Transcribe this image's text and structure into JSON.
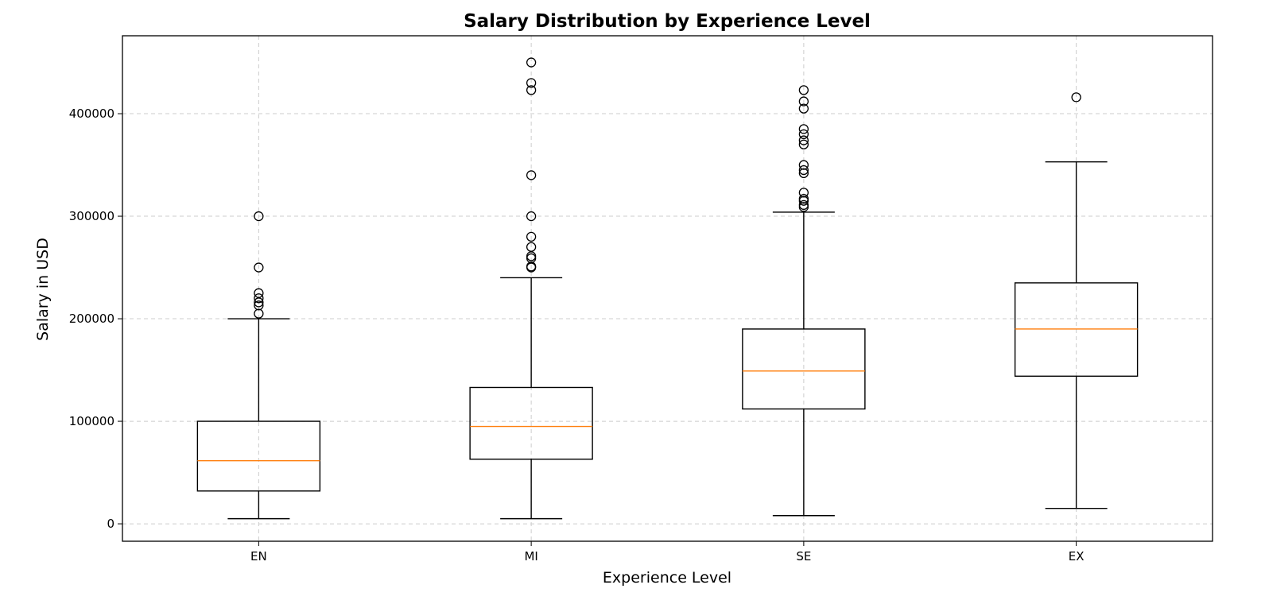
{
  "chart_data": {
    "type": "box",
    "title": "Salary Distribution by Experience Level",
    "xlabel": "Experience Level",
    "ylabel": "Salary in USD",
    "categories": [
      "EN",
      "MI",
      "SE",
      "EX"
    ],
    "ylim": [
      -17000,
      476000
    ],
    "yticks": [
      0,
      100000,
      200000,
      300000,
      400000
    ],
    "ytick_labels": [
      "0",
      "100000",
      "200000",
      "300000",
      "400000"
    ],
    "grid": true,
    "boxes": [
      {
        "category": "EN",
        "whisker_low": 5000,
        "q1": 32000,
        "median": 61500,
        "q3": 100000,
        "whisker_high": 200000,
        "outliers": [
          205000,
          213000,
          216000,
          220000,
          225000,
          250000,
          300000
        ]
      },
      {
        "category": "MI",
        "whisker_low": 5000,
        "q1": 63000,
        "median": 95000,
        "q3": 133000,
        "whisker_high": 240000,
        "outliers": [
          250000,
          251000,
          259000,
          261000,
          270000,
          280000,
          300000,
          340000,
          423000,
          430000,
          450000
        ]
      },
      {
        "category": "SE",
        "whisker_low": 8000,
        "q1": 112000,
        "median": 149000,
        "q3": 190000,
        "whisker_high": 304000,
        "outliers": [
          309000,
          311000,
          315000,
          317000,
          323000,
          342000,
          345000,
          350000,
          370000,
          374000,
          380000,
          385000,
          405000,
          412000,
          423000
        ]
      },
      {
        "category": "EX",
        "whisker_low": 15000,
        "q1": 144000,
        "median": 190000,
        "q3": 235000,
        "whisker_high": 353000,
        "outliers": [
          416000
        ]
      }
    ],
    "colors": {
      "box": "#000000",
      "median": "#ff7f0e",
      "grid": "#cccccc"
    }
  }
}
